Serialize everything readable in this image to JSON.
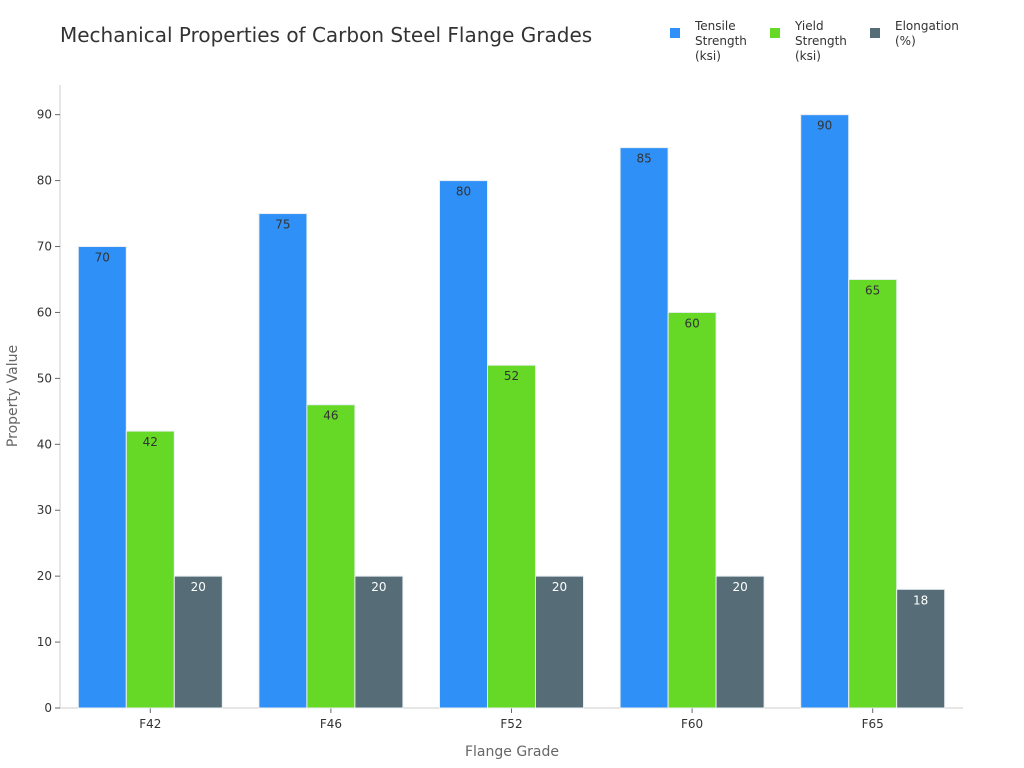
{
  "chart_data": {
    "type": "bar",
    "title": "Mechanical Properties of Carbon Steel Flange Grades",
    "xlabel": "Flange Grade",
    "ylabel": "Property Value",
    "categories": [
      "F42",
      "F46",
      "F52",
      "F60",
      "F65"
    ],
    "series": [
      {
        "name": "Tensile Strength (ksi)",
        "legend_lines": [
          "Tensile",
          "Strength",
          "(ksi)"
        ],
        "values": [
          70,
          75,
          80,
          85,
          90
        ],
        "color": "#2f91f7",
        "label_color": "#333333"
      },
      {
        "name": "Yield Strength (ksi)",
        "legend_lines": [
          "Yield",
          "Strength",
          "(ksi)"
        ],
        "values": [
          42,
          46,
          52,
          60,
          65
        ],
        "color": "#66d926",
        "label_color": "#333333"
      },
      {
        "name": "Elongation (%)",
        "legend_lines": [
          "Elongation",
          "(%)"
        ],
        "values": [
          20,
          20,
          20,
          20,
          18
        ],
        "color": "#566d77",
        "label_color": "#ffffff"
      }
    ],
    "ylim": [
      0,
      94.5
    ],
    "yticks": [
      0,
      10,
      20,
      30,
      40,
      50,
      60,
      70,
      80,
      90
    ],
    "grid": false,
    "legend_position": "top-right"
  }
}
